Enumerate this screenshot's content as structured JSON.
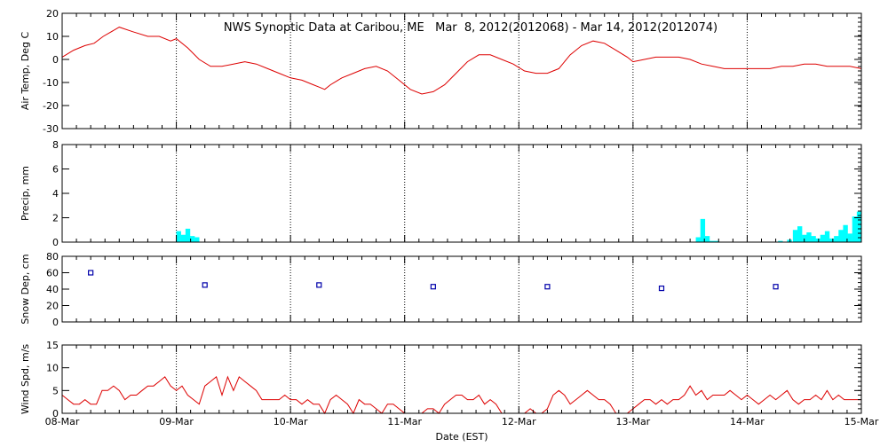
{
  "title": "NWS Synoptic Data at Caribou, ME   Mar  8, 2012(2012068) - Mar 14, 2012(2012074)",
  "xlabel": "Date (EST)",
  "x_ticks": [
    "08-Mar",
    "09-Mar",
    "10-Mar",
    "11-Mar",
    "12-Mar",
    "13-Mar",
    "14-Mar",
    "15-Mar"
  ],
  "colors": {
    "air_temp": "#dd0000",
    "precip": "#00ffff",
    "snow": "#0000aa",
    "wind": "#dd0000",
    "grid": "#000000"
  },
  "chart_data": [
    {
      "type": "line",
      "ylabel": "Air Temp, Deg C",
      "ylim": [
        -30,
        20
      ],
      "yticks": [
        20,
        10,
        0,
        -10,
        -20,
        -30
      ],
      "x_unit": "days since 08-Mar 00:00 EST",
      "series": [
        {
          "points": [
            [
              0.0,
              1
            ],
            [
              0.1,
              4
            ],
            [
              0.2,
              6
            ],
            [
              0.28,
              7
            ],
            [
              0.36,
              10
            ],
            [
              0.5,
              14
            ],
            [
              0.62,
              12
            ],
            [
              0.75,
              10
            ],
            [
              0.85,
              10
            ],
            [
              0.95,
              8
            ],
            [
              1.0,
              9
            ],
            [
              1.1,
              5
            ],
            [
              1.2,
              0
            ],
            [
              1.3,
              -3
            ],
            [
              1.4,
              -3
            ],
            [
              1.5,
              -2
            ],
            [
              1.6,
              -1
            ],
            [
              1.7,
              -2
            ],
            [
              1.8,
              -4
            ],
            [
              1.9,
              -6
            ],
            [
              2.0,
              -8
            ],
            [
              2.1,
              -9
            ],
            [
              2.2,
              -11
            ],
            [
              2.25,
              -12
            ],
            [
              2.3,
              -13
            ],
            [
              2.35,
              -11
            ],
            [
              2.45,
              -8
            ],
            [
              2.55,
              -6
            ],
            [
              2.65,
              -4
            ],
            [
              2.75,
              -3
            ],
            [
              2.85,
              -5
            ],
            [
              2.95,
              -9
            ],
            [
              3.05,
              -13
            ],
            [
              3.15,
              -15
            ],
            [
              3.25,
              -14
            ],
            [
              3.35,
              -11
            ],
            [
              3.45,
              -6
            ],
            [
              3.55,
              -1
            ],
            [
              3.65,
              2
            ],
            [
              3.75,
              2
            ],
            [
              3.85,
              0
            ],
            [
              3.95,
              -2
            ],
            [
              4.05,
              -5
            ],
            [
              4.15,
              -6
            ],
            [
              4.25,
              -6
            ],
            [
              4.35,
              -4
            ],
            [
              4.45,
              2
            ],
            [
              4.55,
              6
            ],
            [
              4.65,
              8
            ],
            [
              4.75,
              7
            ],
            [
              4.85,
              4
            ],
            [
              4.95,
              1
            ],
            [
              5.0,
              -1
            ],
            [
              5.1,
              0
            ],
            [
              5.2,
              1
            ],
            [
              5.3,
              1
            ],
            [
              5.4,
              1
            ],
            [
              5.5,
              0
            ],
            [
              5.6,
              -2
            ],
            [
              5.7,
              -3
            ],
            [
              5.8,
              -4
            ],
            [
              5.9,
              -4
            ],
            [
              6.0,
              -4
            ],
            [
              6.1,
              -4
            ],
            [
              6.2,
              -4
            ],
            [
              6.3,
              -3
            ],
            [
              6.4,
              -3
            ],
            [
              6.5,
              -2
            ],
            [
              6.6,
              -2
            ],
            [
              6.7,
              -3
            ],
            [
              6.8,
              -3
            ],
            [
              6.9,
              -3
            ],
            [
              7.0,
              -4
            ]
          ]
        }
      ]
    },
    {
      "type": "bar",
      "ylabel": "Precip, mm",
      "ylim": [
        0,
        8
      ],
      "yticks": [
        8,
        6,
        4,
        2,
        0
      ],
      "x_unit": "days since 08-Mar 00:00 EST",
      "bar_width_days": 0.0417,
      "bars": [
        [
          1.0,
          0.9
        ],
        [
          1.04,
          0.6
        ],
        [
          1.08,
          1.1
        ],
        [
          1.12,
          0.5
        ],
        [
          1.16,
          0.4
        ],
        [
          5.55,
          0.4
        ],
        [
          5.59,
          1.9
        ],
        [
          5.63,
          0.5
        ],
        [
          5.67,
          0.1
        ],
        [
          5.71,
          0.1
        ],
        [
          6.27,
          0.1
        ],
        [
          6.35,
          0.2
        ],
        [
          6.4,
          1.0
        ],
        [
          6.44,
          1.3
        ],
        [
          6.48,
          0.6
        ],
        [
          6.52,
          0.8
        ],
        [
          6.56,
          0.5
        ],
        [
          6.6,
          0.3
        ],
        [
          6.64,
          0.6
        ],
        [
          6.68,
          0.9
        ],
        [
          6.72,
          0.3
        ],
        [
          6.76,
          0.5
        ],
        [
          6.8,
          1.0
        ],
        [
          6.84,
          1.4
        ],
        [
          6.88,
          0.7
        ],
        [
          6.92,
          2.1
        ],
        [
          6.96,
          2.5
        ]
      ]
    },
    {
      "type": "scatter",
      "ylabel": "Snow Dep, cm",
      "ylim": [
        0,
        80
      ],
      "yticks": [
        80,
        60,
        40,
        20,
        0
      ],
      "x_unit": "days since 08-Mar 00:00 EST",
      "points": [
        [
          0.25,
          60
        ],
        [
          1.25,
          45
        ],
        [
          2.25,
          45
        ],
        [
          3.25,
          43
        ],
        [
          4.25,
          43
        ],
        [
          5.25,
          41
        ],
        [
          6.25,
          43
        ]
      ]
    },
    {
      "type": "line",
      "ylabel": "Wind Spd, m/s",
      "ylim": [
        0,
        15
      ],
      "yticks": [
        15,
        10,
        5,
        0
      ],
      "x_unit": "days since 08-Mar 00:00 EST",
      "series": [
        {
          "points": [
            [
              0.0,
              4
            ],
            [
              0.05,
              3
            ],
            [
              0.1,
              2
            ],
            [
              0.15,
              2
            ],
            [
              0.2,
              3
            ],
            [
              0.25,
              2
            ],
            [
              0.3,
              2
            ],
            [
              0.35,
              5
            ],
            [
              0.4,
              5
            ],
            [
              0.45,
              6
            ],
            [
              0.5,
              5
            ],
            [
              0.55,
              3
            ],
            [
              0.6,
              4
            ],
            [
              0.65,
              4
            ],
            [
              0.7,
              5
            ],
            [
              0.75,
              6
            ],
            [
              0.8,
              6
            ],
            [
              0.85,
              7
            ],
            [
              0.9,
              8
            ],
            [
              0.95,
              6
            ],
            [
              1.0,
              5
            ],
            [
              1.05,
              6
            ],
            [
              1.1,
              4
            ],
            [
              1.15,
              3
            ],
            [
              1.2,
              2
            ],
            [
              1.25,
              6
            ],
            [
              1.3,
              7
            ],
            [
              1.35,
              8
            ],
            [
              1.4,
              4
            ],
            [
              1.45,
              8
            ],
            [
              1.5,
              5
            ],
            [
              1.55,
              8
            ],
            [
              1.6,
              7
            ],
            [
              1.65,
              6
            ],
            [
              1.7,
              5
            ],
            [
              1.75,
              3
            ],
            [
              1.8,
              3
            ],
            [
              1.85,
              3
            ],
            [
              1.9,
              3
            ],
            [
              1.95,
              4
            ],
            [
              2.0,
              3
            ],
            [
              2.05,
              3
            ],
            [
              2.1,
              2
            ],
            [
              2.15,
              3
            ],
            [
              2.2,
              2
            ],
            [
              2.25,
              2
            ],
            [
              2.3,
              0
            ],
            [
              2.35,
              3
            ],
            [
              2.4,
              4
            ],
            [
              2.45,
              3
            ],
            [
              2.5,
              2
            ],
            [
              2.55,
              0
            ],
            [
              2.6,
              3
            ],
            [
              2.65,
              2
            ],
            [
              2.7,
              2
            ],
            [
              2.75,
              1
            ],
            [
              2.8,
              0
            ],
            [
              2.85,
              2
            ],
            [
              2.9,
              2
            ],
            [
              2.95,
              1
            ],
            [
              3.0,
              0
            ],
            [
              3.05,
              0
            ],
            [
              3.1,
              0
            ],
            [
              3.15,
              0
            ],
            [
              3.2,
              1
            ],
            [
              3.25,
              1
            ],
            [
              3.3,
              0
            ],
            [
              3.35,
              2
            ],
            [
              3.4,
              3
            ],
            [
              3.45,
              4
            ],
            [
              3.5,
              4
            ],
            [
              3.55,
              3
            ],
            [
              3.6,
              3
            ],
            [
              3.65,
              4
            ],
            [
              3.7,
              2
            ],
            [
              3.75,
              3
            ],
            [
              3.8,
              2
            ],
            [
              3.85,
              0
            ],
            [
              3.9,
              0
            ],
            [
              3.95,
              0
            ],
            [
              4.0,
              0
            ],
            [
              4.05,
              0
            ],
            [
              4.1,
              1
            ],
            [
              4.15,
              0
            ],
            [
              4.2,
              0
            ],
            [
              4.25,
              1
            ],
            [
              4.3,
              4
            ],
            [
              4.35,
              5
            ],
            [
              4.4,
              4
            ],
            [
              4.45,
              2
            ],
            [
              4.5,
              3
            ],
            [
              4.55,
              4
            ],
            [
              4.6,
              5
            ],
            [
              4.65,
              4
            ],
            [
              4.7,
              3
            ],
            [
              4.75,
              3
            ],
            [
              4.8,
              2
            ],
            [
              4.85,
              0
            ],
            [
              4.9,
              0
            ],
            [
              4.95,
              0
            ],
            [
              5.0,
              1
            ],
            [
              5.05,
              2
            ],
            [
              5.1,
              3
            ],
            [
              5.15,
              3
            ],
            [
              5.2,
              2
            ],
            [
              5.25,
              3
            ],
            [
              5.3,
              2
            ],
            [
              5.35,
              3
            ],
            [
              5.4,
              3
            ],
            [
              5.45,
              4
            ],
            [
              5.5,
              6
            ],
            [
              5.55,
              4
            ],
            [
              5.6,
              5
            ],
            [
              5.65,
              3
            ],
            [
              5.7,
              4
            ],
            [
              5.75,
              4
            ],
            [
              5.8,
              4
            ],
            [
              5.85,
              5
            ],
            [
              5.9,
              4
            ],
            [
              5.95,
              3
            ],
            [
              6.0,
              4
            ],
            [
              6.05,
              3
            ],
            [
              6.1,
              2
            ],
            [
              6.15,
              3
            ],
            [
              6.2,
              4
            ],
            [
              6.25,
              3
            ],
            [
              6.3,
              4
            ],
            [
              6.35,
              5
            ],
            [
              6.4,
              3
            ],
            [
              6.45,
              2
            ],
            [
              6.5,
              3
            ],
            [
              6.55,
              3
            ],
            [
              6.6,
              4
            ],
            [
              6.65,
              3
            ],
            [
              6.7,
              5
            ],
            [
              6.75,
              3
            ],
            [
              6.8,
              4
            ],
            [
              6.85,
              3
            ],
            [
              6.9,
              3
            ],
            [
              6.95,
              3
            ],
            [
              7.0,
              3
            ]
          ]
        }
      ]
    }
  ]
}
